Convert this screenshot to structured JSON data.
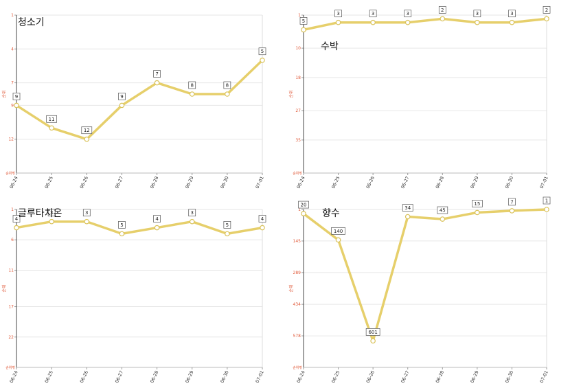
{
  "chart_data": [
    {
      "type": "line",
      "title": "청소기",
      "ylabel": "순위",
      "ymin_label": "순위밖",
      "categories": [
        "06-24",
        "06-25",
        "06-26",
        "06-27",
        "06-28",
        "06-29",
        "06-30",
        "07-01"
      ],
      "yticks": [
        1,
        4,
        7,
        9,
        12
      ],
      "ylim": [
        1,
        15
      ],
      "inverted": true,
      "values": [
        9,
        11,
        12,
        9,
        7,
        8,
        8,
        5
      ],
      "color": "#e6cf6b"
    },
    {
      "type": "line",
      "title": "수박",
      "ylabel": "순위",
      "ymin_label": "순위밖",
      "categories": [
        "06-24",
        "06-25",
        "06-26",
        "06-27",
        "06-28",
        "06-29",
        "06-30",
        "07-01"
      ],
      "yticks": [
        1,
        10,
        18,
        27,
        35
      ],
      "ylim": [
        1,
        44
      ],
      "inverted": true,
      "values": [
        5,
        3,
        3,
        3,
        2,
        3,
        3,
        2
      ],
      "color": "#e6cf6b"
    },
    {
      "type": "line",
      "title": "글루타치온",
      "ylabel": "순위",
      "ymin_label": "순위밖",
      "categories": [
        "06-24",
        "06-25",
        "06-26",
        "06-27",
        "06-28",
        "06-29",
        "06-30",
        "07-01"
      ],
      "yticks": [
        1,
        6,
        11,
        17,
        22
      ],
      "ylim": [
        1,
        27
      ],
      "inverted": true,
      "values": [
        4,
        3,
        3,
        5,
        4,
        3,
        5,
        4
      ],
      "color": "#e6cf6b"
    },
    {
      "type": "line",
      "title": "향수",
      "ylabel": "순위",
      "ymin_label": "순위밖",
      "categories": [
        "06-24",
        "06-25",
        "06-26",
        "06-27",
        "06-28",
        "06-29",
        "06-30",
        "07-01"
      ],
      "yticks": [
        1,
        145,
        289,
        434,
        578
      ],
      "ylim": [
        1,
        722
      ],
      "inverted": true,
      "values": [
        20,
        140,
        601,
        34,
        45,
        15,
        7,
        1
      ],
      "color": "#e6cf6b"
    }
  ]
}
